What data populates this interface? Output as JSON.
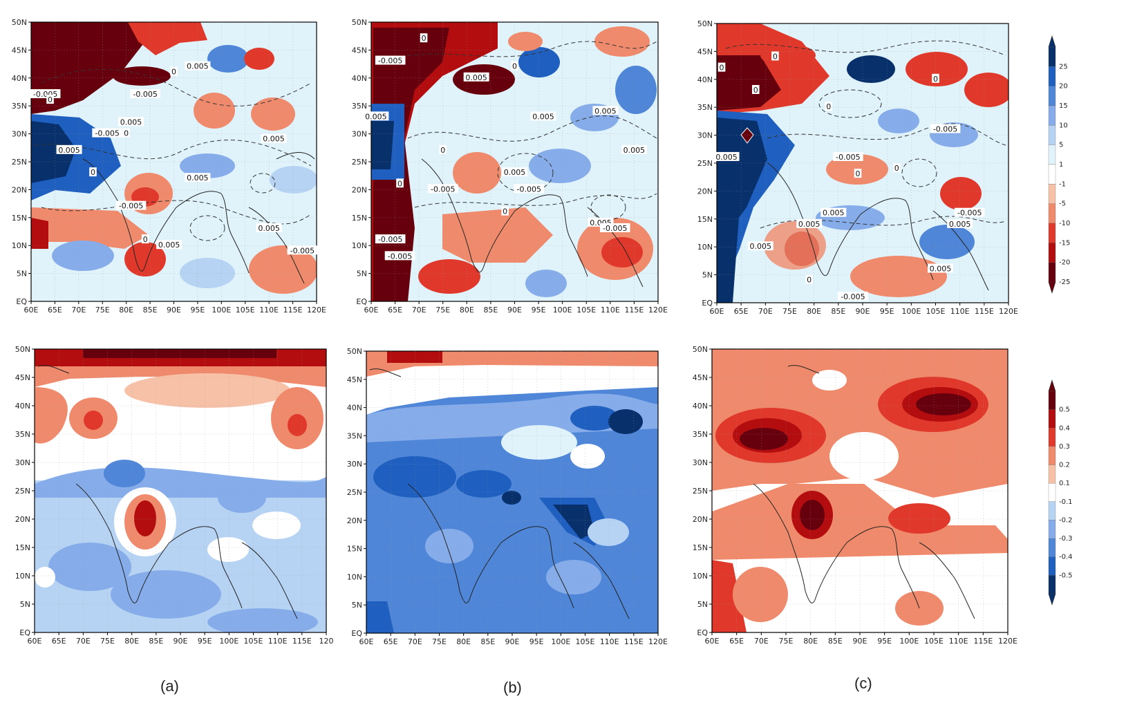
{
  "axes": {
    "lon_ticks": [
      "60E",
      "65E",
      "70E",
      "75E",
      "80E",
      "85E",
      "90E",
      "95E",
      "100E",
      "105E",
      "110E",
      "115E",
      "120E"
    ],
    "lon_ticks_short_end": [
      "60E",
      "65E",
      "70E",
      "75E",
      "80E",
      "85E",
      "90E",
      "95E",
      "100E",
      "105E",
      "110E",
      "115E",
      "120"
    ],
    "lat_ticks_top_a": [
      "EQ",
      "5N",
      "10N",
      "15N",
      "20N",
      "25N",
      "30N",
      "35N",
      "40N",
      "45N",
      "50N"
    ],
    "lat_ticks": [
      "EQ",
      "5N",
      "10N",
      "15N",
      "20N",
      "25N",
      "30N",
      "35N",
      "40N",
      "45N",
      "50N"
    ],
    "lon_range": [
      60,
      120
    ],
    "lat_range": [
      0,
      50
    ]
  },
  "captions": {
    "a": "(a)",
    "b": "(b)",
    "c": "(c)"
  },
  "colorbar_top": {
    "labels": [
      "25",
      "20",
      "15",
      "10",
      "5",
      "1",
      "-1",
      "-5",
      "-10",
      "-15",
      "-20",
      "-25"
    ],
    "colors": [
      "#08306b",
      "#1f5fbf",
      "#4f86d8",
      "#86adea",
      "#b7d3f4",
      "#e0f3fa",
      "#ffffff",
      "#f7c1a8",
      "#f08a6c",
      "#e0392b",
      "#b30d10",
      "#67000d"
    ]
  },
  "colorbar_bottom": {
    "labels": [
      "0.5",
      "0.4",
      "0.3",
      "0.2",
      "0.1",
      "-0.1",
      "-0.2",
      "-0.3",
      "-0.4",
      "-0.5"
    ],
    "colors": [
      "#67000d",
      "#b30d10",
      "#e0392b",
      "#f08a6c",
      "#f7c1a8",
      "#ffffff",
      "#b7d3f4",
      "#86adea",
      "#4f86d8",
      "#1f5fbf",
      "#08306b"
    ]
  },
  "contour_labels": {
    "a_top": [
      {
        "t": "0.005",
        "lon": 95,
        "lat": 42
      },
      {
        "t": "-0.005",
        "lon": 63,
        "lat": 37
      },
      {
        "t": "0",
        "lon": 64,
        "lat": 36
      },
      {
        "t": "-0.005",
        "lon": 84,
        "lat": 37
      },
      {
        "t": "0.005",
        "lon": 81,
        "lat": 32
      },
      {
        "t": "-0.005",
        "lon": 76,
        "lat": 30
      },
      {
        "t": "0.005",
        "lon": 68,
        "lat": 27
      },
      {
        "t": "0.005",
        "lon": 111,
        "lat": 29
      },
      {
        "t": "0.005",
        "lon": 95,
        "lat": 22
      },
      {
        "t": "-0.005",
        "lon": 81,
        "lat": 17
      },
      {
        "t": "0.005",
        "lon": 110,
        "lat": 13
      },
      {
        "t": "0.005",
        "lon": 89,
        "lat": 10
      },
      {
        "t": "-0.005",
        "lon": 117,
        "lat": 9
      },
      {
        "t": "0",
        "lon": 90,
        "lat": 41
      },
      {
        "t": "0",
        "lon": 80,
        "lat": 30
      },
      {
        "t": "0",
        "lon": 73,
        "lat": 23
      },
      {
        "t": "0",
        "lon": 84,
        "lat": 11
      }
    ],
    "b_top": [
      {
        "t": "0",
        "lon": 71,
        "lat": 47
      },
      {
        "t": "-0.005",
        "lon": 64,
        "lat": 43
      },
      {
        "t": "0.005",
        "lon": 82,
        "lat": 40
      },
      {
        "t": "0",
        "lon": 90,
        "lat": 42
      },
      {
        "t": "0.005",
        "lon": 61,
        "lat": 33
      },
      {
        "t": "0.005",
        "lon": 96,
        "lat": 33
      },
      {
        "t": "0.005",
        "lon": 109,
        "lat": 34
      },
      {
        "t": "0.005",
        "lon": 115,
        "lat": 27
      },
      {
        "t": "0.005",
        "lon": 90,
        "lat": 23
      },
      {
        "t": "-0.005",
        "lon": 75,
        "lat": 20
      },
      {
        "t": "-0.005",
        "lon": 93,
        "lat": 20
      },
      {
        "t": "0.005",
        "lon": 108,
        "lat": 14
      },
      {
        "t": "-0.005",
        "lon": 111,
        "lat": 13
      },
      {
        "t": "-0.005",
        "lon": 64,
        "lat": 11
      },
      {
        "t": "-0.005",
        "lon": 66,
        "lat": 8
      },
      {
        "t": "0",
        "lon": 66,
        "lat": 21
      },
      {
        "t": "0",
        "lon": 75,
        "lat": 27
      },
      {
        "t": "0",
        "lon": 88,
        "lat": 16
      }
    ],
    "c_top": [
      {
        "t": "0",
        "lon": 61,
        "lat": 42
      },
      {
        "t": "0",
        "lon": 68,
        "lat": 38
      },
      {
        "t": "0",
        "lon": 72,
        "lat": 44
      },
      {
        "t": "0",
        "lon": 105,
        "lat": 40
      },
      {
        "t": "0",
        "lon": 83,
        "lat": 35
      },
      {
        "t": "-0.005",
        "lon": 107,
        "lat": 31
      },
      {
        "t": "0.005",
        "lon": 62,
        "lat": 26
      },
      {
        "t": "-0.005",
        "lon": 87,
        "lat": 26
      },
      {
        "t": "0.005",
        "lon": 84,
        "lat": 16
      },
      {
        "t": "0.005",
        "lon": 79,
        "lat": 14
      },
      {
        "t": "0.005",
        "lon": 69,
        "lat": 10
      },
      {
        "t": "-0.005",
        "lon": 112,
        "lat": 16
      },
      {
        "t": "0.005",
        "lon": 110,
        "lat": 14
      },
      {
        "t": "0.005",
        "lon": 106,
        "lat": 6
      },
      {
        "t": "-0.005",
        "lon": 88,
        "lat": 1
      },
      {
        "t": "0",
        "lon": 79,
        "lat": 4
      },
      {
        "t": "0",
        "lon": 89,
        "lat": 23
      },
      {
        "t": "0",
        "lon": 97,
        "lat": 24
      }
    ]
  }
}
